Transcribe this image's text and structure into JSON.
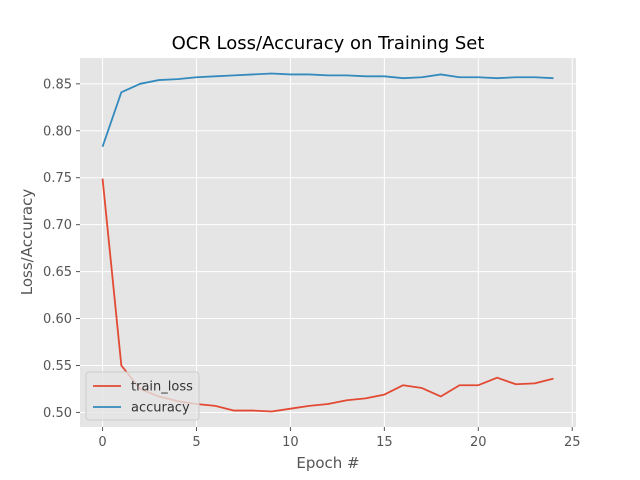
{
  "chart_data": {
    "type": "line",
    "title": "OCR Loss/Accuracy on Training Set",
    "xlabel": "Epoch #",
    "ylabel": "Loss/Accuracy",
    "xlim": [
      -1.2,
      25.2
    ],
    "ylim": [
      0.4845,
      0.8775
    ],
    "xticks": [
      0,
      5,
      10,
      15,
      20,
      25
    ],
    "xtick_labels": [
      "0",
      "5",
      "10",
      "15",
      "20",
      "25"
    ],
    "yticks": [
      0.5,
      0.55,
      0.6,
      0.65,
      0.7,
      0.75,
      0.8,
      0.85
    ],
    "ytick_labels": [
      "0.50",
      "0.55",
      "0.60",
      "0.65",
      "0.70",
      "0.75",
      "0.80",
      "0.85"
    ],
    "grid": true,
    "legend_position": "lower-left",
    "x": [
      0,
      1,
      2,
      3,
      4,
      5,
      6,
      7,
      8,
      9,
      10,
      11,
      12,
      13,
      14,
      15,
      16,
      17,
      18,
      19,
      20,
      21,
      22,
      23,
      24
    ],
    "series": [
      {
        "name": "train_loss",
        "color": "#E24A33",
        "values": [
          0.749,
          0.55,
          0.525,
          0.517,
          0.512,
          0.509,
          0.507,
          0.502,
          0.502,
          0.501,
          0.504,
          0.507,
          0.509,
          0.513,
          0.515,
          0.519,
          0.529,
          0.526,
          0.517,
          0.529,
          0.529,
          0.537,
          0.53,
          0.531,
          0.536
        ]
      },
      {
        "name": "accuracy",
        "color": "#348ABD",
        "values": [
          0.783,
          0.841,
          0.85,
          0.854,
          0.855,
          0.857,
          0.858,
          0.859,
          0.86,
          0.861,
          0.86,
          0.86,
          0.859,
          0.859,
          0.858,
          0.858,
          0.856,
          0.857,
          0.86,
          0.857,
          0.857,
          0.856,
          0.857,
          0.857,
          0.856
        ]
      }
    ],
    "colors": {
      "plot_background": "#E5E5E5",
      "grid": "#FFFFFF",
      "text": "#555555"
    }
  }
}
